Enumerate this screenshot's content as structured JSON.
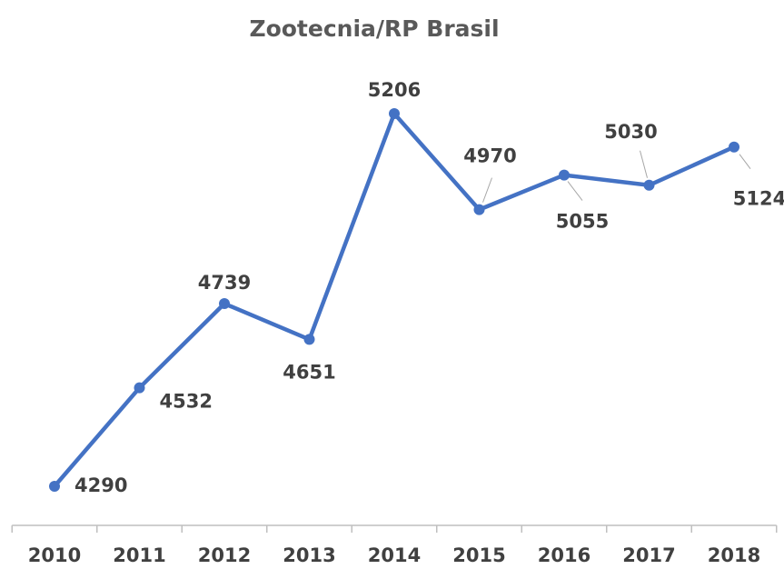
{
  "chart_data": {
    "type": "line",
    "title": "Zootecnia/RP Brasil",
    "categories": [
      "2010",
      "2011",
      "2012",
      "2013",
      "2014",
      "2015",
      "2016",
      "2017",
      "2018"
    ],
    "series": [
      {
        "name": "Zootecnia/RP Brasil",
        "color": "#4472c4",
        "values": [
          4290,
          4532,
          4739,
          4651,
          5206,
          4970,
          5055,
          5030,
          5124
        ]
      }
    ]
  }
}
